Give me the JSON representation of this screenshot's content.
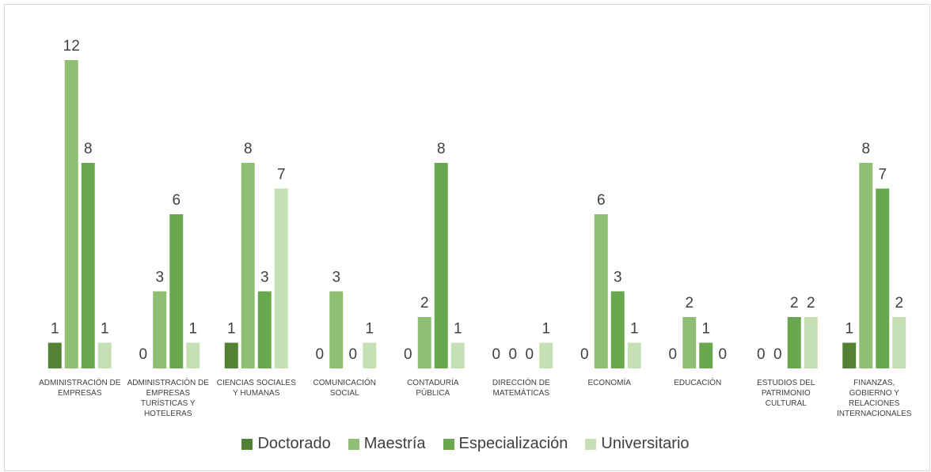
{
  "chart_data": {
    "type": "bar",
    "categories": [
      "ADMINISTRACIÓN DE EMPRESAS",
      "ADMINISTRACIÓN DE EMPRESAS TURÍSTICAS Y HOTELERAS",
      "CIENCIAS SOCIALES Y HUMANAS",
      "COMUNICACIÓN SOCIAL",
      "CONTADURÍA PÚBLICA",
      "DIRECCIÓN DE MATEMÁTICAS",
      "ECONOMÍA",
      "EDUCACIÓN",
      "ESTUDIOS DEL PATRIMONIO CULTURAL",
      "FINANZAS, GOBIERNO Y RELACIONES INTERNACIONALES"
    ],
    "series": [
      {
        "name": "Doctorado",
        "color": "#548235",
        "values": [
          1,
          0,
          1,
          0,
          0,
          0,
          0,
          0,
          0,
          1
        ]
      },
      {
        "name": "Maestría",
        "color": "#8fbf73",
        "values": [
          12,
          3,
          8,
          3,
          2,
          0,
          6,
          2,
          0,
          8
        ]
      },
      {
        "name": "Especialización",
        "color": "#6aa84f",
        "values": [
          8,
          6,
          3,
          0,
          8,
          0,
          3,
          1,
          2,
          7
        ]
      },
      {
        "name": "Universitario",
        "color": "#c5e0b4",
        "values": [
          1,
          1,
          7,
          1,
          1,
          1,
          1,
          0,
          2,
          2
        ]
      }
    ],
    "ylim": [
      0,
      12
    ],
    "legend": "bottom"
  }
}
